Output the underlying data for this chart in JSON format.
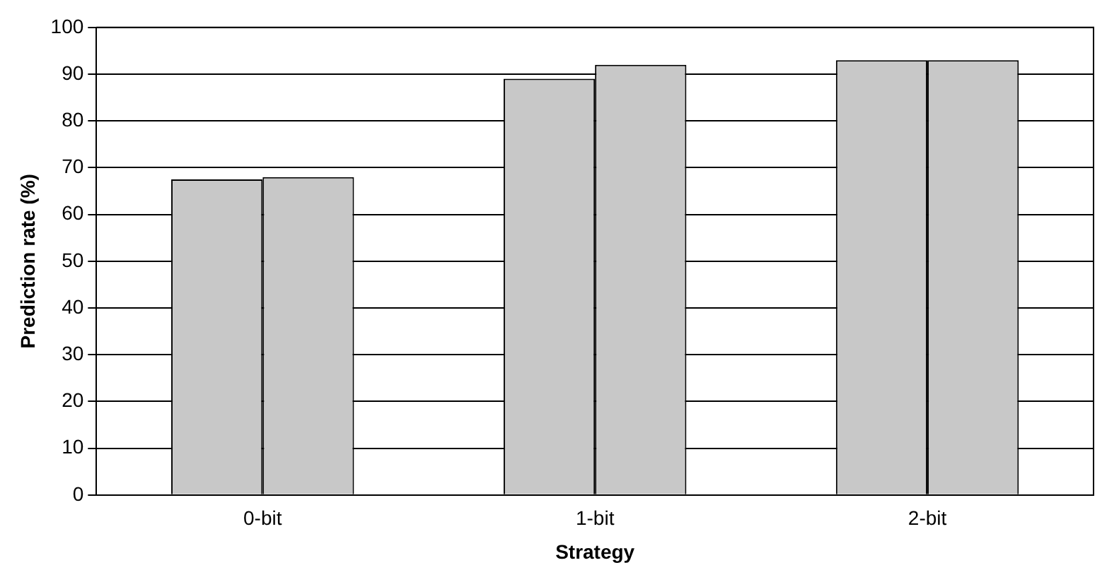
{
  "chart_data": {
    "type": "bar",
    "xlabel": "Strategy",
    "ylabel": "Prediction rate (%)",
    "categories": [
      "0-bit",
      "1-bit",
      "2-bit"
    ],
    "series": [
      {
        "color": "#c8c8c8",
        "values": [
          67.5,
          89,
          93
        ]
      },
      {
        "color": "#c8c8c8",
        "values": [
          68,
          92,
          93
        ]
      }
    ],
    "ylim": [
      0,
      100
    ],
    "yticks": [
      0,
      10,
      20,
      30,
      40,
      50,
      60,
      70,
      80,
      90,
      100
    ],
    "grid": "y",
    "legend": false
  }
}
